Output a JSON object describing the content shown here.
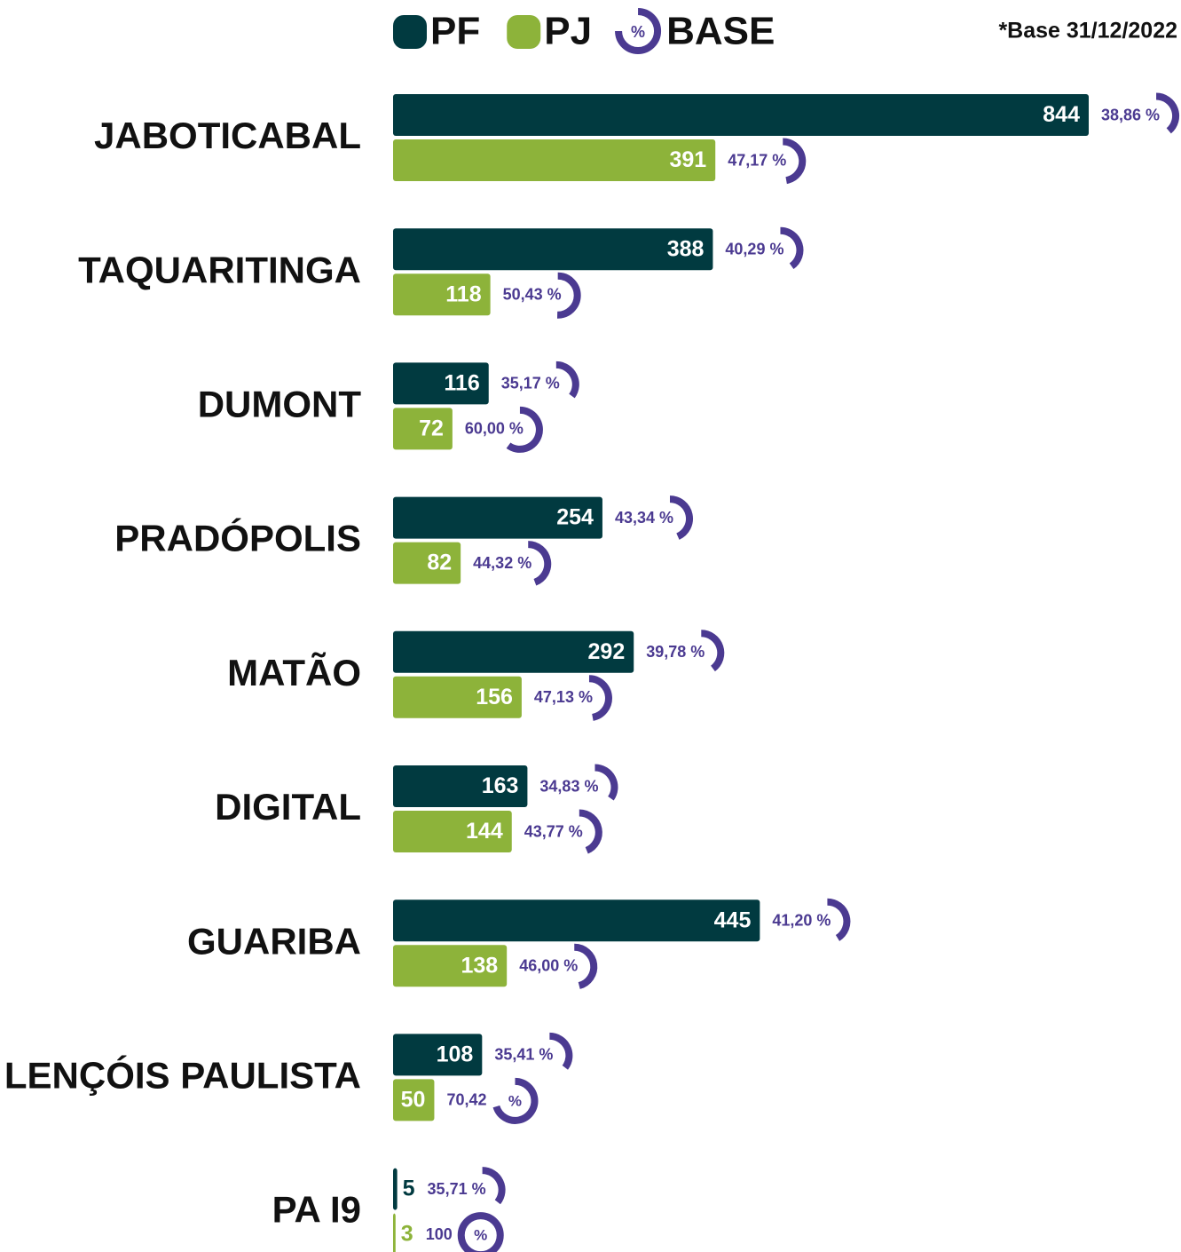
{
  "chart_data": {
    "type": "bar",
    "orientation": "horizontal",
    "note": "*Base 31/12/2022",
    "legend_base": "BASE",
    "base_symbol": "%",
    "categories": [
      "JABOTICABAL",
      "TAQUARITINGA",
      "DUMONT",
      "PRADÓPOLIS",
      "MATÃO",
      "DIGITAL",
      "GUARIBA",
      "LENÇÓIS PAULISTA",
      "PA I9"
    ],
    "base_color": "#4b3a91",
    "series": [
      {
        "name": "PF",
        "color": "#013a40",
        "values": [
          844,
          388,
          116,
          254,
          292,
          163,
          445,
          108,
          5
        ],
        "base_values": [
          38.86,
          40.29,
          35.17,
          43.34,
          39.78,
          34.83,
          41.2,
          35.41,
          35.71
        ],
        "base_labels": [
          "38,86 %",
          "40,29 %",
          "35,17 %",
          "43,34 %",
          "39,78 %",
          "34,83 %",
          "41,20 %",
          "35,41 %",
          "35,71 %"
        ]
      },
      {
        "name": "PJ",
        "color": "#8db33a",
        "values": [
          391,
          118,
          72,
          82,
          156,
          144,
          138,
          50,
          3
        ],
        "base_values": [
          47.17,
          50.43,
          60.0,
          44.32,
          47.13,
          43.77,
          46.0,
          70.42,
          100
        ],
        "base_labels": [
          "47,17 %",
          "50,43 %",
          "60,00 %",
          "44,32 %",
          "47,13 %",
          "43,77 %",
          "46,00 %",
          "70,42",
          "100"
        ]
      }
    ]
  }
}
